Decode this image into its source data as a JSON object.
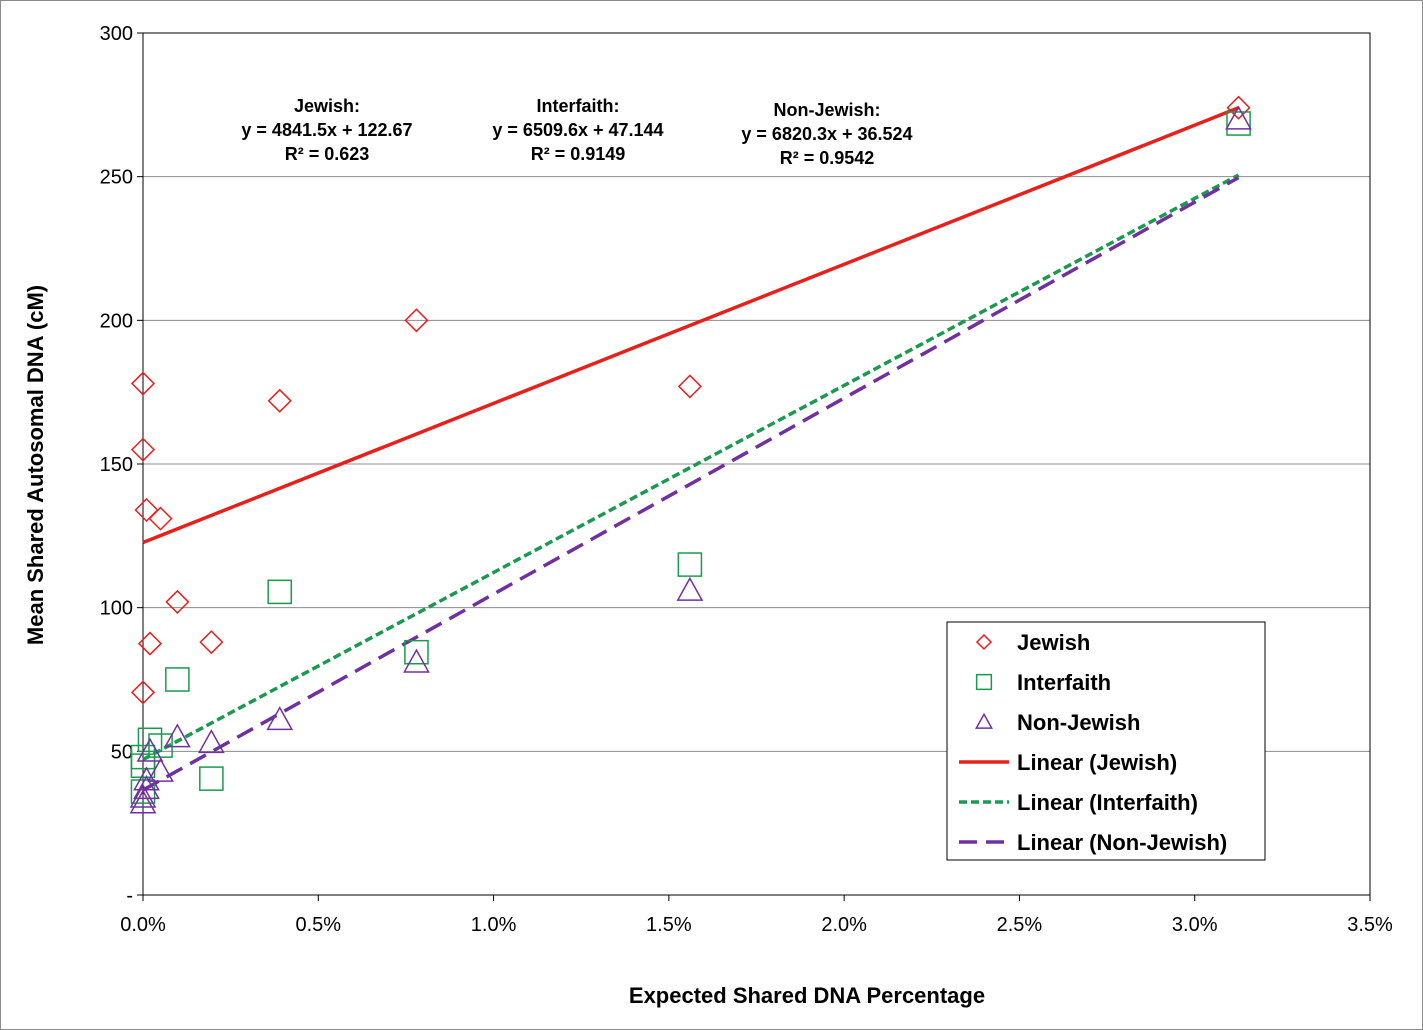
{
  "chart_data": {
    "type": "scatter",
    "title": "",
    "xlabel": "Expected Shared DNA Percentage",
    "ylabel": "Mean Shared Autosomal  DNA (cM)",
    "xlim": [
      0,
      0.035
    ],
    "ylim": [
      0,
      300
    ],
    "x_ticks": [
      0,
      0.005,
      0.01,
      0.015,
      0.02,
      0.025,
      0.03,
      0.035
    ],
    "x_tick_labels": [
      "0.0%",
      "0.5%",
      "1.0%",
      "1.5%",
      "2.0%",
      "2.5%",
      "3.0%",
      "3.5%"
    ],
    "y_ticks": [
      0,
      50,
      100,
      150,
      200,
      250,
      300
    ],
    "y_tick_labels": [
      "-",
      "50",
      "100",
      "150",
      "200",
      "250",
      "300"
    ],
    "grid": "horizontal",
    "legend_position": "bottom-right",
    "series": [
      {
        "name": "Jewish",
        "marker": "diamond",
        "color": "#e8201c",
        "points": [
          [
            0.0,
            178
          ],
          [
            0.0,
            155
          ],
          [
            0.0001,
            134
          ],
          [
            0.0,
            70.5
          ],
          [
            0.0002,
            87.5
          ],
          [
            0.0005,
            131
          ],
          [
            0.00098,
            102
          ],
          [
            0.00195,
            88
          ],
          [
            0.0039,
            172
          ],
          [
            0.0078,
            200
          ],
          [
            0.0156,
            177
          ],
          [
            0.03125,
            274
          ]
        ]
      },
      {
        "name": "Interfaith",
        "marker": "square",
        "color": "#1a9a50",
        "points": [
          [
            0.0,
            48
          ],
          [
            0.0,
            36
          ],
          [
            0.0,
            45
          ],
          [
            0.0002,
            54
          ],
          [
            0.0005,
            52
          ],
          [
            0.00098,
            75
          ],
          [
            0.00195,
            40.5
          ],
          [
            0.0039,
            105.5
          ],
          [
            0.0078,
            84.5
          ],
          [
            0.0156,
            115
          ],
          [
            0.03125,
            268.5
          ]
        ]
      },
      {
        "name": "Non-Jewish",
        "marker": "triangle",
        "color": "#7030a0",
        "points": [
          [
            0.0,
            32
          ],
          [
            0.0,
            34
          ],
          [
            0.0001,
            37
          ],
          [
            0.0001,
            40
          ],
          [
            0.0002,
            50
          ],
          [
            0.0005,
            43
          ],
          [
            0.00098,
            55
          ],
          [
            0.00195,
            53
          ],
          [
            0.0039,
            61
          ],
          [
            0.0078,
            81
          ],
          [
            0.0156,
            106
          ],
          [
            0.03125,
            270
          ]
        ]
      }
    ],
    "trendlines": [
      {
        "name": "Linear (Jewish)",
        "slope": 4841.5,
        "intercept": 122.67,
        "x_range": [
          0,
          0.03125
        ],
        "color": "#e8201c",
        "style": "solid"
      },
      {
        "name": "Linear (Interfaith)",
        "slope": 6509.6,
        "intercept": 47.144,
        "x_range": [
          0,
          0.03125
        ],
        "color": "#1a9a50",
        "style": "short-dash"
      },
      {
        "name": "Linear (Non-Jewish)",
        "slope": 6820.3,
        "intercept": 36.524,
        "x_range": [
          0,
          0.03125
        ],
        "color": "#7030a0",
        "style": "long-dash"
      }
    ],
    "annotations": [
      {
        "lines": [
          "Jewish:",
          "y = 4841.5x + 122.67",
          "R² = 0.623"
        ]
      },
      {
        "lines": [
          "Interfaith:",
          "y = 6509.6x + 47.144",
          "R² = 0.9149"
        ]
      },
      {
        "lines": [
          "Non-Jewish:",
          "y = 6820.3x + 36.524",
          "R² = 0.9542"
        ]
      }
    ],
    "legend": [
      {
        "label": "Jewish",
        "kind": "diamond",
        "color": "#e8201c"
      },
      {
        "label": "Interfaith",
        "kind": "square",
        "color": "#1a9a50"
      },
      {
        "label": "Non-Jewish",
        "kind": "triangle",
        "color": "#7030a0"
      },
      {
        "label": "Linear (Jewish)",
        "kind": "solid",
        "color": "#e8201c"
      },
      {
        "label": "Linear (Interfaith)",
        "kind": "short-dash",
        "color": "#1a9a50"
      },
      {
        "label": "Linear (Non-Jewish)",
        "kind": "long-dash",
        "color": "#7030a0"
      }
    ]
  }
}
